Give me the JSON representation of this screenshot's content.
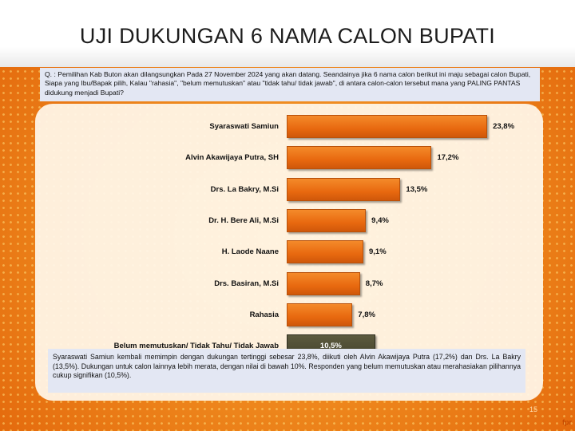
{
  "slide": {
    "title": "UJI DUKUNGAN 6 NAMA CALON BUPATI",
    "question": "Q. : Pemilihan Kab Buton akan dilangsungkan Pada 27 November 2024 yang akan datang. Seandainya jika 6 nama calon berikut ini maju sebagai calon Bupati, Siapa yang Ibu/Bapak pilih, Kalau \"rahasia\", \"belum memutuskan\" atau \"tidak tahu/ tidak jawab\", di antara calon-calon tersebut mana yang PALING PANTAS didukung menjadi Bupati?",
    "summary": "Syaraswati Samiun kembali memimpin dengan dukungan tertinggi sebesar 23,8%, diikuti oleh Alvin Akawijaya Putra (17,2%) dan Drs. La Bakry (13,5%). Dukungan untuk calon lainnya lebih merata, dengan nilai di bawah 10%. Responden yang belum memutuskan atau merahasiakan pilihannya cukup signifikan (10,5%).",
    "page_number": "15",
    "logo_text": "fpr"
  },
  "chart_data": {
    "type": "bar",
    "orientation": "horizontal",
    "categories": [
      "Syaraswati Samiun",
      "Alvin Akawijaya Putra, SH",
      "Drs. La Bakry, M.Si",
      "Dr. H. Bere Ali, M.Si",
      "H. Laode Naane",
      "Drs. Basiran, M.Si",
      "Rahasia",
      "Belum memutuskan/ Tidak Tahu/ Tidak Jawab"
    ],
    "values": [
      23.8,
      17.2,
      13.5,
      9.4,
      9.1,
      8.7,
      7.8,
      10.5
    ],
    "value_labels": [
      "23,8%",
      "17,2%",
      "13,5%",
      "9,4%",
      "9,1%",
      "8,7%",
      "7,8%",
      "10,5%"
    ],
    "bar_colors": [
      "#ed7416",
      "#ed7416",
      "#ed7416",
      "#ed7416",
      "#ed7416",
      "#ed7416",
      "#ed7416",
      "#4f4d35"
    ],
    "grid": false,
    "legend": "none"
  }
}
